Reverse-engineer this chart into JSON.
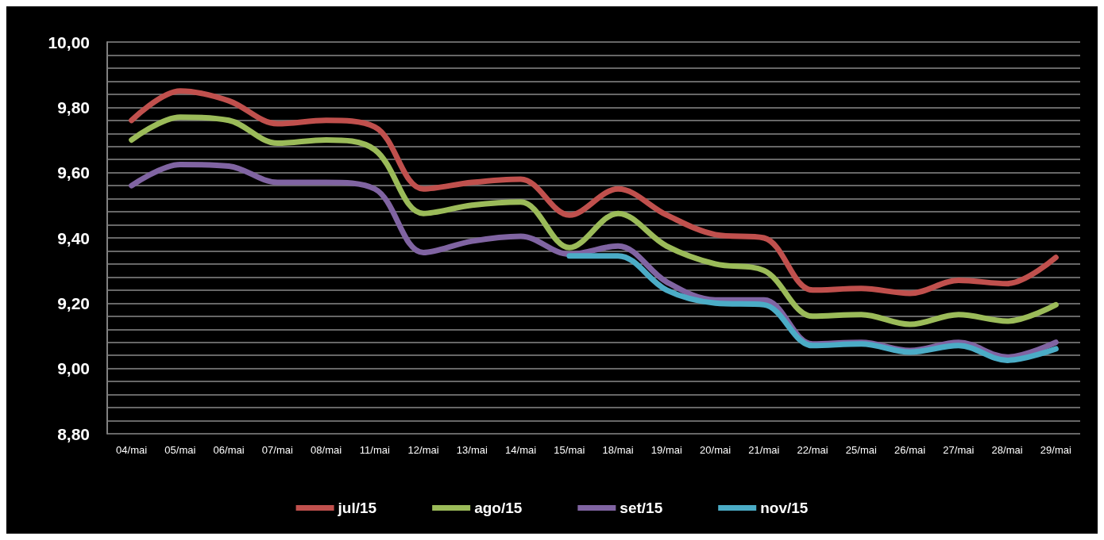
{
  "chart_data": {
    "type": "line",
    "categories": [
      "04/mai",
      "05/mai",
      "06/mai",
      "07/mai",
      "08/mai",
      "11/mai",
      "12/mai",
      "13/mai",
      "14/mai",
      "15/mai",
      "18/mai",
      "19/mai",
      "20/mai",
      "21/mai",
      "22/mai",
      "25/mai",
      "26/mai",
      "27/mai",
      "28/mai",
      "29/mai"
    ],
    "series": [
      {
        "name": "jul/15",
        "color": "#c0504d",
        "values": [
          9.76,
          9.85,
          9.82,
          9.75,
          9.76,
          9.74,
          9.55,
          9.57,
          9.58,
          9.47,
          9.55,
          9.47,
          9.41,
          9.4,
          9.24,
          9.245,
          9.23,
          9.27,
          9.26,
          9.34
        ]
      },
      {
        "name": "ago/15",
        "color": "#9bbb59",
        "values": [
          9.7,
          9.77,
          9.76,
          9.69,
          9.7,
          9.67,
          9.475,
          9.5,
          9.51,
          9.37,
          9.475,
          9.375,
          9.32,
          9.3,
          9.16,
          9.165,
          9.135,
          9.165,
          9.145,
          9.195
        ]
      },
      {
        "name": "set/15",
        "color": "#8064a2",
        "values": [
          9.56,
          9.625,
          9.62,
          9.57,
          9.57,
          9.55,
          9.355,
          9.39,
          9.405,
          9.35,
          9.375,
          9.265,
          9.21,
          9.21,
          9.075,
          9.08,
          9.055,
          9.08,
          9.035,
          9.08
        ]
      },
      {
        "name": "nov/15",
        "color": "#4bacc6",
        "values": [
          null,
          null,
          null,
          null,
          null,
          null,
          null,
          null,
          null,
          9.345,
          9.345,
          9.24,
          9.2,
          9.195,
          9.07,
          9.075,
          9.05,
          9.07,
          9.025,
          9.06
        ]
      }
    ],
    "ylim": [
      8.8,
      10.0
    ],
    "yticks": [
      {
        "value": 8.8,
        "label": "8,80"
      },
      {
        "value": 8.84,
        "label": null
      },
      {
        "value": 8.88,
        "label": null
      },
      {
        "value": 8.92,
        "label": null
      },
      {
        "value": 8.96,
        "label": null
      },
      {
        "value": 9.0,
        "label": "9,00"
      },
      {
        "value": 9.04,
        "label": null
      },
      {
        "value": 9.08,
        "label": null
      },
      {
        "value": 9.12,
        "label": null
      },
      {
        "value": 9.16,
        "label": null
      },
      {
        "value": 9.2,
        "label": "9,20"
      },
      {
        "value": 9.24,
        "label": null
      },
      {
        "value": 9.28,
        "label": null
      },
      {
        "value": 9.32,
        "label": null
      },
      {
        "value": 9.36,
        "label": null
      },
      {
        "value": 9.4,
        "label": "9,40"
      },
      {
        "value": 9.44,
        "label": null
      },
      {
        "value": 9.48,
        "label": null
      },
      {
        "value": 9.52,
        "label": null
      },
      {
        "value": 9.56,
        "label": null
      },
      {
        "value": 9.6,
        "label": "9,60"
      },
      {
        "value": 9.64,
        "label": null
      },
      {
        "value": 9.68,
        "label": null
      },
      {
        "value": 9.72,
        "label": null
      },
      {
        "value": 9.76,
        "label": null
      },
      {
        "value": 9.8,
        "label": "9,80"
      },
      {
        "value": 9.84,
        "label": null
      },
      {
        "value": 9.88,
        "label": null
      },
      {
        "value": 9.92,
        "label": null
      },
      {
        "value": 9.96,
        "label": null
      },
      {
        "value": 10.0,
        "label": "10,00"
      }
    ],
    "grid": "y",
    "legend": "bottom",
    "marker": "none",
    "line_style": "solid"
  }
}
